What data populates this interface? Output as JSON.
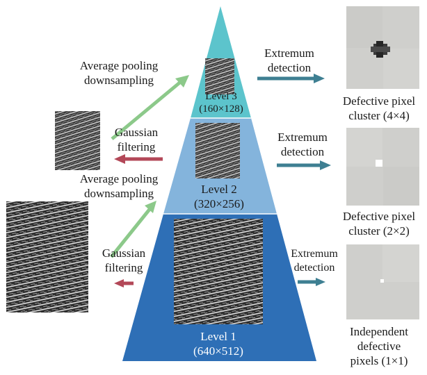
{
  "levels": [
    {
      "name": "Level 3",
      "size": "(160×128)"
    },
    {
      "name": "Level 2",
      "size": "(320×256)"
    },
    {
      "name": "Level 1",
      "size": "(640×512)"
    }
  ],
  "operations": {
    "avg_pool_top": [
      "Average pooling",
      "downsampling"
    ],
    "gauss_top": [
      "Gaussian",
      "filtering"
    ],
    "avg_pool_bottom": [
      "Average pooling",
      "downsampling"
    ],
    "gauss_bottom": [
      "Gaussian",
      "filtering"
    ]
  },
  "detection": {
    "top": [
      "Extremum",
      "detection"
    ],
    "middle": [
      "Extremum",
      "detection"
    ],
    "bottom": [
      "Extremum",
      "detection"
    ]
  },
  "results": {
    "top": [
      "Defective pixel",
      "cluster (4×4)"
    ],
    "middle": [
      "Defective pixel",
      "cluster (2×2)"
    ],
    "bottom": [
      "Independent",
      "defective",
      "pixels (1×1)"
    ]
  },
  "colors": {
    "pyramid_top": "#5cc4cc",
    "pyramid_middle": "#84b4dc",
    "pyramid_bottom": "#2e6fb6",
    "arrow_teal": "#3e7f92",
    "arrow_green": "#8cc98a",
    "arrow_red": "#b34858",
    "result_bg": "#cfcfcc"
  }
}
